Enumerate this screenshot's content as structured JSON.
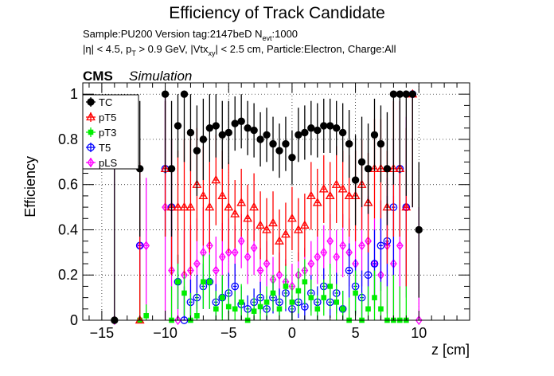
{
  "chart_data": {
    "type": "scatter",
    "title": "Efficiency of Track Candidate",
    "subtitle_line1": "Sample:PU200   Version tag:2147beD  N",
    "subtitle_line1_sub": "evt",
    "subtitle_line1_end": ":1000",
    "subtitle_line2": "|η| < 4.5, p",
    "subtitle_line2_sub1": "T",
    "subtitle_line2_mid": " > 0.9 GeV, |Vtx",
    "subtitle_line2_sub2": "xy",
    "subtitle_line2_end": "| < 2.5 cm, Particle:Electron, Charge:All",
    "cms_label": "CMS",
    "cms_sub": "Simulation",
    "xlabel": "z [cm]",
    "ylabel": "Efficiency",
    "xlim": [
      -16.5,
      14
    ],
    "ylim": [
      0,
      1.05
    ],
    "xticks": [
      -15,
      -10,
      -5,
      0,
      5,
      10
    ],
    "yticks": [
      0,
      0.2,
      0.4,
      0.6,
      0.8,
      1
    ],
    "grid": true,
    "legend_position": "top-left",
    "series": [
      {
        "name": "TC",
        "color": "#000000",
        "marker": "filled-circle",
        "points": [
          [
            -14.0,
            0.0,
            0.7
          ],
          [
            -12.0,
            0.67,
            0.3
          ],
          [
            -10.0,
            1.0,
            0.35
          ],
          [
            -9.5,
            0.67,
            0.3
          ],
          [
            -9.0,
            0.86,
            0.14
          ],
          [
            -8.5,
            1.0,
            0.3
          ],
          [
            -8.0,
            0.83,
            0.17
          ],
          [
            -7.5,
            0.75,
            0.2
          ],
          [
            -7.0,
            0.8,
            0.18
          ],
          [
            -6.5,
            0.85,
            0.15
          ],
          [
            -6.0,
            0.86,
            0.14
          ],
          [
            -5.5,
            0.82,
            0.15
          ],
          [
            -5.0,
            0.83,
            0.14
          ],
          [
            -4.5,
            0.87,
            0.12
          ],
          [
            -4.0,
            0.88,
            0.12
          ],
          [
            -3.5,
            0.85,
            0.12
          ],
          [
            -3.0,
            0.84,
            0.12
          ],
          [
            -2.5,
            0.8,
            0.12
          ],
          [
            -2.0,
            0.82,
            0.12
          ],
          [
            -1.5,
            0.78,
            0.12
          ],
          [
            -1.0,
            0.75,
            0.12
          ],
          [
            -0.5,
            0.78,
            0.12
          ],
          [
            0.0,
            0.72,
            0.12
          ],
          [
            0.5,
            0.82,
            0.12
          ],
          [
            1.0,
            0.83,
            0.12
          ],
          [
            1.5,
            0.85,
            0.12
          ],
          [
            2.0,
            0.84,
            0.12
          ],
          [
            2.5,
            0.86,
            0.12
          ],
          [
            3.0,
            0.86,
            0.12
          ],
          [
            3.5,
            0.85,
            0.12
          ],
          [
            4.0,
            0.83,
            0.13
          ],
          [
            4.5,
            0.78,
            0.15
          ],
          [
            5.0,
            0.62,
            0.2
          ],
          [
            5.5,
            0.7,
            0.2
          ],
          [
            6.0,
            0.67,
            0.2
          ],
          [
            6.5,
            0.82,
            0.16
          ],
          [
            7.0,
            0.78,
            0.17
          ],
          [
            7.5,
            0.67,
            0.25
          ],
          [
            8.0,
            1.0,
            0.4
          ],
          [
            8.5,
            1.0,
            0.35
          ],
          [
            9.0,
            1.0,
            0.45
          ],
          [
            9.5,
            1.0,
            0.5
          ],
          [
            10.0,
            0.4,
            0.3
          ]
        ]
      },
      {
        "name": "pT5",
        "color": "#ff0000",
        "marker": "open-triangle",
        "points": [
          [
            -12.0,
            0.0,
            0.7
          ],
          [
            -10.0,
            0.67,
            0.3
          ],
          [
            -9.5,
            0.5,
            0.3
          ],
          [
            -9.0,
            0.5,
            0.25
          ],
          [
            -8.5,
            0.5,
            0.3
          ],
          [
            -8.0,
            0.5,
            0.3
          ],
          [
            -7.5,
            0.6,
            0.25
          ],
          [
            -7.0,
            0.55,
            0.22
          ],
          [
            -6.5,
            0.5,
            0.2
          ],
          [
            -6.0,
            0.62,
            0.2
          ],
          [
            -5.5,
            0.55,
            0.2
          ],
          [
            -5.0,
            0.5,
            0.2
          ],
          [
            -4.5,
            0.47,
            0.15
          ],
          [
            -4.0,
            0.52,
            0.15
          ],
          [
            -3.5,
            0.45,
            0.15
          ],
          [
            -3.0,
            0.5,
            0.15
          ],
          [
            -2.5,
            0.42,
            0.15
          ],
          [
            -2.0,
            0.4,
            0.14
          ],
          [
            -1.5,
            0.43,
            0.14
          ],
          [
            -1.0,
            0.35,
            0.14
          ],
          [
            -0.5,
            0.38,
            0.14
          ],
          [
            0.0,
            0.45,
            0.14
          ],
          [
            0.5,
            0.4,
            0.14
          ],
          [
            1.0,
            0.42,
            0.14
          ],
          [
            1.5,
            0.55,
            0.15
          ],
          [
            2.0,
            0.52,
            0.15
          ],
          [
            2.5,
            0.58,
            0.15
          ],
          [
            3.0,
            0.55,
            0.15
          ],
          [
            3.5,
            0.6,
            0.17
          ],
          [
            4.0,
            0.58,
            0.17
          ],
          [
            4.5,
            0.55,
            0.18
          ],
          [
            5.0,
            0.55,
            0.2
          ],
          [
            5.5,
            0.6,
            0.2
          ],
          [
            6.0,
            0.52,
            0.22
          ],
          [
            6.5,
            0.67,
            0.22
          ],
          [
            7.0,
            0.67,
            0.22
          ],
          [
            7.5,
            0.5,
            0.25
          ],
          [
            8.0,
            0.67,
            0.3
          ],
          [
            8.5,
            0.67,
            0.3
          ],
          [
            9.0,
            0.5,
            0.35
          ],
          [
            9.5,
            1.0,
            0.5
          ]
        ]
      },
      {
        "name": "pT3",
        "color": "#00ee00",
        "marker": "filled-square",
        "points": [
          [
            -12.0,
            0.0,
            0.2
          ],
          [
            -11.5,
            0.02,
            0.05
          ],
          [
            -9.5,
            0.0,
            0.15
          ],
          [
            -9.0,
            0.17,
            0.12
          ],
          [
            -8.5,
            0.12,
            0.1
          ],
          [
            -8.0,
            0.0,
            0.12
          ],
          [
            -7.5,
            0.02,
            0.1
          ],
          [
            -7.0,
            0.17,
            0.12
          ],
          [
            -6.5,
            0.17,
            0.12
          ],
          [
            -6.0,
            0.05,
            0.08
          ],
          [
            -5.5,
            0.1,
            0.1
          ],
          [
            -5.0,
            0.06,
            0.08
          ],
          [
            -4.5,
            0.05,
            0.08
          ],
          [
            -4.0,
            0.08,
            0.08
          ],
          [
            -3.5,
            0.0,
            0.06
          ],
          [
            -3.0,
            0.04,
            0.06
          ],
          [
            -2.5,
            0.06,
            0.06
          ],
          [
            -2.0,
            0.08,
            0.07
          ],
          [
            -1.5,
            0.12,
            0.08
          ],
          [
            -1.0,
            0.05,
            0.06
          ],
          [
            -0.5,
            0.15,
            0.1
          ],
          [
            0.0,
            0.08,
            0.08
          ],
          [
            0.5,
            0.13,
            0.1
          ],
          [
            1.0,
            0.17,
            0.1
          ],
          [
            1.5,
            0.1,
            0.08
          ],
          [
            2.0,
            0.05,
            0.06
          ],
          [
            2.5,
            0.1,
            0.08
          ],
          [
            3.0,
            0.15,
            0.1
          ],
          [
            3.5,
            0.08,
            0.08
          ],
          [
            4.0,
            0.05,
            0.08
          ],
          [
            4.5,
            0.0,
            0.1
          ],
          [
            5.0,
            0.12,
            0.1
          ],
          [
            5.5,
            0.0,
            0.12
          ],
          [
            6.0,
            0.05,
            0.1
          ],
          [
            6.5,
            0.1,
            0.12
          ],
          [
            7.0,
            0.05,
            0.12
          ],
          [
            7.5,
            0.0,
            0.15
          ],
          [
            8.0,
            0.0,
            0.2
          ],
          [
            8.5,
            0.0,
            0.15
          ],
          [
            9.0,
            0.0,
            0.2
          ]
        ]
      },
      {
        "name": "T5",
        "color": "#0000ff",
        "marker": "open-circle",
        "points": [
          [
            -12.0,
            0.33,
            0.3
          ],
          [
            -10.0,
            0.67,
            0.3
          ],
          [
            -9.5,
            0.5,
            0.3
          ],
          [
            -9.0,
            0.17,
            0.12
          ],
          [
            -8.5,
            0.0,
            0.15
          ],
          [
            -8.0,
            0.08,
            0.1
          ],
          [
            -7.5,
            0.1,
            0.1
          ],
          [
            -7.0,
            0.15,
            0.1
          ],
          [
            -6.5,
            0.17,
            0.12
          ],
          [
            -6.0,
            0.08,
            0.08
          ],
          [
            -5.5,
            0.1,
            0.09
          ],
          [
            -5.0,
            0.12,
            0.09
          ],
          [
            -4.5,
            0.15,
            0.1
          ],
          [
            -4.0,
            0.07,
            0.08
          ],
          [
            -3.5,
            0.05,
            0.06
          ],
          [
            -3.0,
            0.08,
            0.06
          ],
          [
            -2.5,
            0.1,
            0.07
          ],
          [
            -2.0,
            0.05,
            0.06
          ],
          [
            -1.5,
            0.1,
            0.07
          ],
          [
            -1.0,
            0.08,
            0.06
          ],
          [
            -0.5,
            0.12,
            0.08
          ],
          [
            0.0,
            0.05,
            0.06
          ],
          [
            0.5,
            0.08,
            0.07
          ],
          [
            1.0,
            0.06,
            0.06
          ],
          [
            1.5,
            0.12,
            0.08
          ],
          [
            2.0,
            0.08,
            0.07
          ],
          [
            2.5,
            0.15,
            0.08
          ],
          [
            3.0,
            0.08,
            0.07
          ],
          [
            3.5,
            0.12,
            0.09
          ],
          [
            4.0,
            0.05,
            0.08
          ],
          [
            4.5,
            0.22,
            0.12
          ],
          [
            5.0,
            0.15,
            0.12
          ],
          [
            5.5,
            0.1,
            0.12
          ],
          [
            6.0,
            0.2,
            0.15
          ],
          [
            6.5,
            0.25,
            0.15
          ],
          [
            7.0,
            0.33,
            0.2
          ],
          [
            7.5,
            0.35,
            0.2
          ],
          [
            8.0,
            0.5,
            0.3
          ],
          [
            8.5,
            0.67,
            0.3
          ],
          [
            9.0,
            0.5,
            0.35
          ],
          [
            9.5,
            1.0,
            0.5
          ]
        ]
      },
      {
        "name": "pLS",
        "color": "#ff00ff",
        "marker": "open-diamond",
        "points": [
          [
            -14.0,
            0.0,
            0.7
          ],
          [
            -12.0,
            0.33,
            0.35
          ],
          [
            -11.5,
            0.33,
            0.3
          ],
          [
            -10.0,
            0.5,
            0.5
          ],
          [
            -9.5,
            0.22,
            0.3
          ],
          [
            -9.0,
            0.0,
            0.15
          ],
          [
            -8.5,
            0.2,
            0.2
          ],
          [
            -8.0,
            0.22,
            0.2
          ],
          [
            -7.5,
            0.25,
            0.2
          ],
          [
            -7.0,
            0.3,
            0.2
          ],
          [
            -6.5,
            0.33,
            0.18
          ],
          [
            -6.0,
            0.22,
            0.15
          ],
          [
            -5.5,
            0.28,
            0.15
          ],
          [
            -5.0,
            0.3,
            0.15
          ],
          [
            -4.5,
            0.3,
            0.12
          ],
          [
            -4.0,
            0.35,
            0.12
          ],
          [
            -3.5,
            0.28,
            0.12
          ],
          [
            -3.0,
            0.32,
            0.12
          ],
          [
            -2.5,
            0.22,
            0.1
          ],
          [
            -2.0,
            0.25,
            0.1
          ],
          [
            -1.5,
            0.18,
            0.1
          ],
          [
            -1.0,
            0.2,
            0.1
          ],
          [
            -0.5,
            0.17,
            0.1
          ],
          [
            0.0,
            0.15,
            0.1
          ],
          [
            0.5,
            0.2,
            0.1
          ],
          [
            1.0,
            0.22,
            0.1
          ],
          [
            1.5,
            0.25,
            0.1
          ],
          [
            2.0,
            0.28,
            0.12
          ],
          [
            2.5,
            0.3,
            0.12
          ],
          [
            3.0,
            0.35,
            0.12
          ],
          [
            3.5,
            0.28,
            0.12
          ],
          [
            4.0,
            0.33,
            0.14
          ],
          [
            4.5,
            0.3,
            0.15
          ],
          [
            5.0,
            0.25,
            0.15
          ],
          [
            5.5,
            0.33,
            0.18
          ],
          [
            6.0,
            0.35,
            0.2
          ],
          [
            6.5,
            0.25,
            0.2
          ],
          [
            7.0,
            0.2,
            0.25
          ],
          [
            7.5,
            0.33,
            0.3
          ],
          [
            8.0,
            0.25,
            0.3
          ],
          [
            8.5,
            0.33,
            0.35
          ],
          [
            9.0,
            0.5,
            0.4
          ],
          [
            9.5,
            1.0,
            0.5
          ],
          [
            10.0,
            0.0,
            0.5
          ]
        ]
      }
    ]
  }
}
